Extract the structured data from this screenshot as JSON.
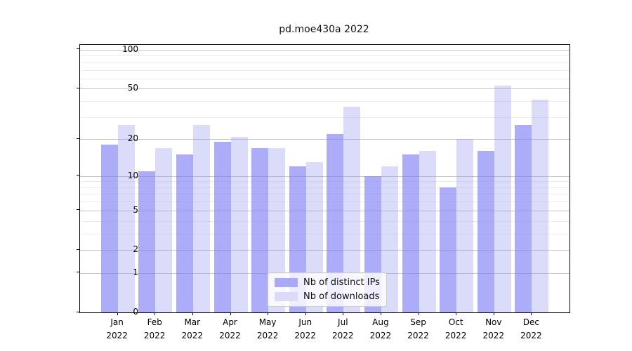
{
  "title": "pd.moe430a 2022",
  "chart_data": {
    "type": "bar",
    "title": "pd.moe430a 2022",
    "yscale": "symlog (ticks 0,1,2,5,10,20,50,100)",
    "categories": [
      "Jan",
      "Feb",
      "Mar",
      "Apr",
      "May",
      "Jun",
      "Jul",
      "Aug",
      "Sep",
      "Oct",
      "Nov",
      "Dec"
    ],
    "year_line": "2022",
    "series": [
      {
        "name": "Nb of distinct IPs",
        "values": [
          18,
          11,
          15,
          19,
          17,
          12,
          22,
          10,
          15,
          8,
          16,
          26
        ],
        "bar_color": "rgba(128,128,245,0.65)",
        "legend_color": "#a9a9f7"
      },
      {
        "name": "Nb of downloads",
        "values": [
          26,
          17,
          26,
          21,
          17,
          13,
          36,
          12,
          16,
          20,
          53,
          41
        ],
        "bar_color": "rgba(135,135,238,0.30)",
        "legend_color": "#dbdbf8"
      }
    ],
    "yticks": [
      0,
      1,
      2,
      5,
      10,
      20,
      50,
      100
    ],
    "minor_gridlines": [
      3,
      4,
      6,
      7,
      8,
      9,
      30,
      40,
      60,
      70,
      80,
      90
    ],
    "ylim": [
      0,
      109
    ],
    "grid": true,
    "legend_position": "lower-center"
  }
}
